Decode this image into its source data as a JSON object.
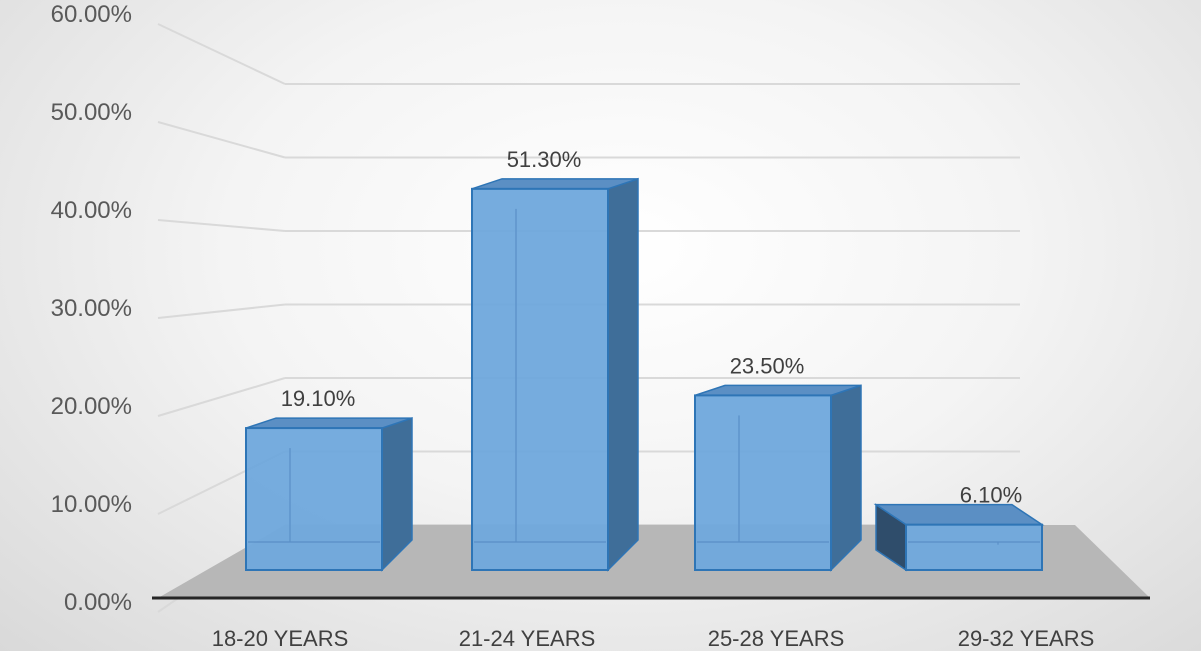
{
  "chart_data": {
    "type": "bar",
    "categories": [
      "18-20 YEARS",
      "21-24 YEARS",
      "25-28 YEARS",
      "29-32 YEARS"
    ],
    "values": [
      19.1,
      51.3,
      23.5,
      6.1
    ],
    "data_labels": [
      "19.10%",
      "51.30%",
      "23.50%",
      "6.10%"
    ],
    "y_tick_labels": [
      "0.00%",
      "10.00%",
      "20.00%",
      "30.00%",
      "40.00%",
      "50.00%",
      "60.00%"
    ],
    "ylim": [
      0,
      60
    ],
    "grid": true,
    "style": "3d-column",
    "colors": {
      "bar_front": "#6fa8dc",
      "bar_side": "#3f6e99",
      "bar_top": "#5b8fc4",
      "bar_edge": "#2e75b6",
      "floor": "#b7b7b7",
      "grid": "#d9d9d9",
      "axis": "#262626"
    }
  }
}
